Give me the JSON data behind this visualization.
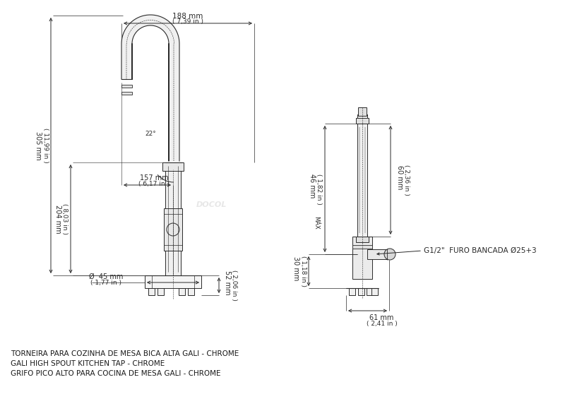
{
  "bg_color": "#ffffff",
  "lc": "#2a2a2a",
  "dc": "#2a2a2a",
  "title_lines": [
    "TORNEIRA PARA COZINHA DE MESA BICA ALTA GALI - CHROME",
    "GALI HIGH SPOUT KITCHEN TAP - CHROME",
    "GRIFO PICO ALTO PARA COCINA DE MESA GALI - CHROME"
  ],
  "figsize": [
    8.0,
    5.65
  ],
  "dpi": 100
}
